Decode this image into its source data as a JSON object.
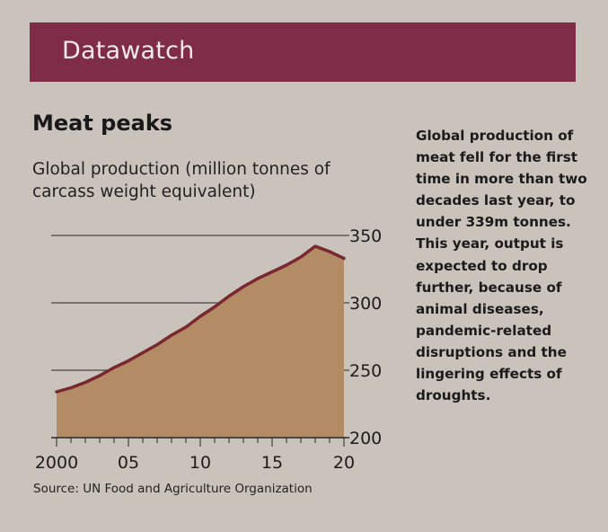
{
  "banner": {
    "title": "Datawatch",
    "color": "#7e2c48"
  },
  "headline": "Meat peaks",
  "body_text": "Global production of meat fell for the first time in more than two decades last year, to under 339m tonnes. This year, output is expected to drop further, because of animal diseases, pandemic-related disruptions and the lingering effects of droughts.",
  "colors": {
    "area_fill": "#b38c65",
    "line": "#7a2730",
    "gridline": "#2a2626"
  },
  "chart_data": {
    "type": "area",
    "title": "Meat peaks",
    "subtitle": "Global production (million tonnes of carcass weight equivalent)",
    "xlabel": "",
    "ylabel": "Global production (million tonnes of carcass weight equivalent)",
    "x": [
      2000,
      2001,
      2002,
      2003,
      2004,
      2005,
      2006,
      2007,
      2008,
      2009,
      2010,
      2011,
      2012,
      2013,
      2014,
      2015,
      2016,
      2017,
      2018,
      2019,
      2020
    ],
    "series": [
      {
        "name": "Global meat production",
        "values": [
          234,
          237,
          241,
          246,
          252,
          257,
          263,
          269,
          276,
          282,
          290,
          297,
          305,
          312,
          318,
          323,
          328,
          334,
          342,
          338,
          333
        ]
      }
    ],
    "xlim": [
      2000,
      2020
    ],
    "ylim": [
      200,
      350
    ],
    "x_ticks": [
      2000,
      2005,
      2010,
      2015,
      2020
    ],
    "x_tick_labels": [
      "2000",
      "05",
      "10",
      "15",
      "20"
    ],
    "y_ticks": [
      200,
      250,
      300,
      350
    ],
    "y_tick_labels": [
      "200",
      "250",
      "300",
      "350"
    ],
    "y_axis_side": "right",
    "grid": true,
    "legend": "none",
    "source": "Source: UN Food and Agriculture Organization"
  }
}
